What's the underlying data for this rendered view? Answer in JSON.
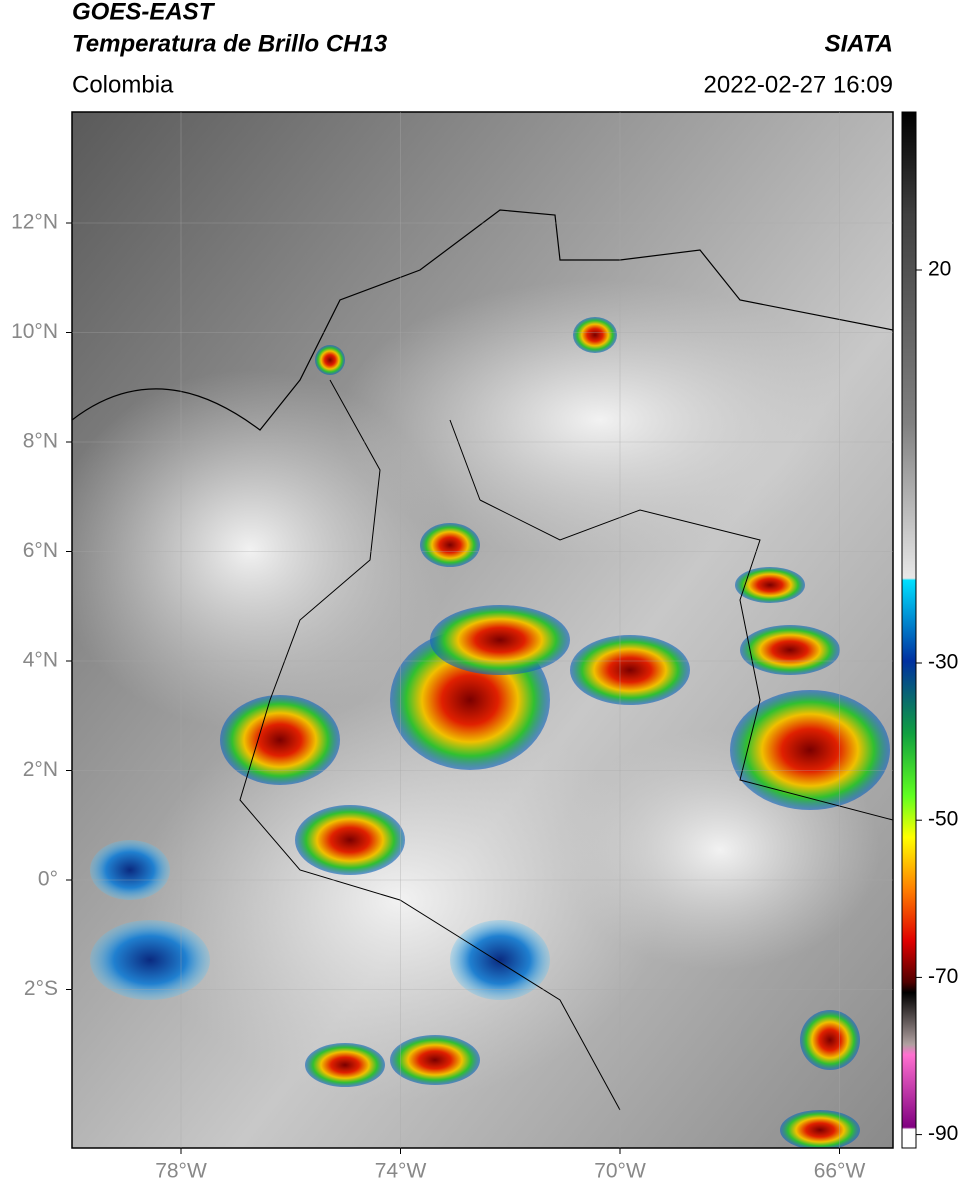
{
  "header": {
    "title": "GOES-EAST",
    "subtitle": "Temperatura de Brillo CH13",
    "region": "Colombia",
    "source": "SIATA",
    "datetime": "2022-02-27 16:09"
  },
  "map": {
    "lat_ticks": [
      "12°N",
      "10°N",
      "8°N",
      "6°N",
      "4°N",
      "2°N",
      "0°",
      "2°S"
    ],
    "lon_ticks": [
      "78°W",
      "74°W",
      "70°W",
      "66°W"
    ]
  },
  "colorbar": {
    "ticks": [
      20,
      -30,
      -50,
      -70,
      -90
    ]
  }
}
